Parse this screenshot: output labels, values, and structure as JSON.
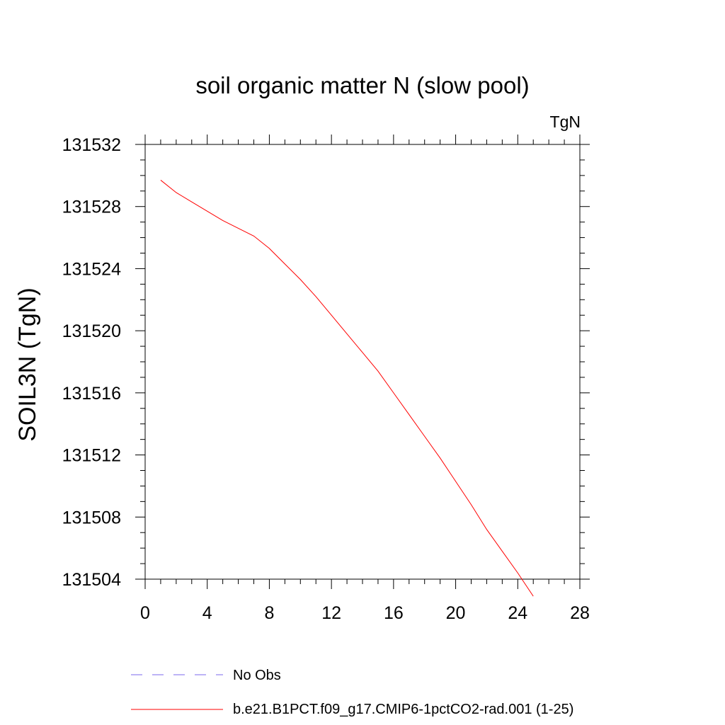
{
  "chart_data": {
    "type": "line",
    "title": "soil organic matter N (slow pool)",
    "units": "TgN",
    "xlabel": "",
    "ylabel": "SOIL3N  (TgN)",
    "xlim": [
      0,
      28
    ],
    "ylim": [
      131504,
      131532
    ],
    "x_ticks": [
      0,
      4,
      8,
      12,
      16,
      20,
      24,
      28
    ],
    "y_ticks": [
      131504,
      131508,
      131512,
      131516,
      131520,
      131524,
      131528,
      131532
    ],
    "x_tick_labels": [
      "0",
      "4",
      "8",
      "12",
      "16",
      "20",
      "24",
      "28"
    ],
    "y_tick_labels": [
      "131504",
      "131508",
      "131512",
      "131516",
      "131520",
      "131524",
      "131528",
      "131532"
    ],
    "grid": false,
    "legend_position": "bottom",
    "series": [
      {
        "name": "b.e21.B1PCT.f09_g17.CMIP6-1pctCO2-rad.001 (1-25)",
        "color": "#ff0000",
        "line_style": "solid",
        "x": [
          1,
          2,
          3,
          4,
          5,
          6,
          7,
          8,
          9,
          10,
          11,
          12,
          13,
          14,
          15,
          16,
          17,
          18,
          19,
          20,
          21,
          22,
          23,
          24,
          25
        ],
        "y": [
          131529.7,
          131528.9,
          131528.3,
          131527.7,
          131527.1,
          131526.6,
          131526.1,
          131525.3,
          131524.3,
          131523.3,
          131522.2,
          131521.0,
          131519.8,
          131518.6,
          131517.4,
          131516.0,
          131514.6,
          131513.2,
          131511.8,
          131510.3,
          131508.8,
          131507.2,
          131505.8,
          131504.4,
          131502.9
        ]
      }
    ],
    "legend": [
      {
        "label": "No Obs",
        "color": "#7b68ee",
        "line_style": "dashed"
      },
      {
        "label": "b.e21.B1PCT.f09_g17.CMIP6-1pctCO2-rad.001 (1-25)",
        "color": "#ff0000",
        "line_style": "solid"
      }
    ]
  }
}
